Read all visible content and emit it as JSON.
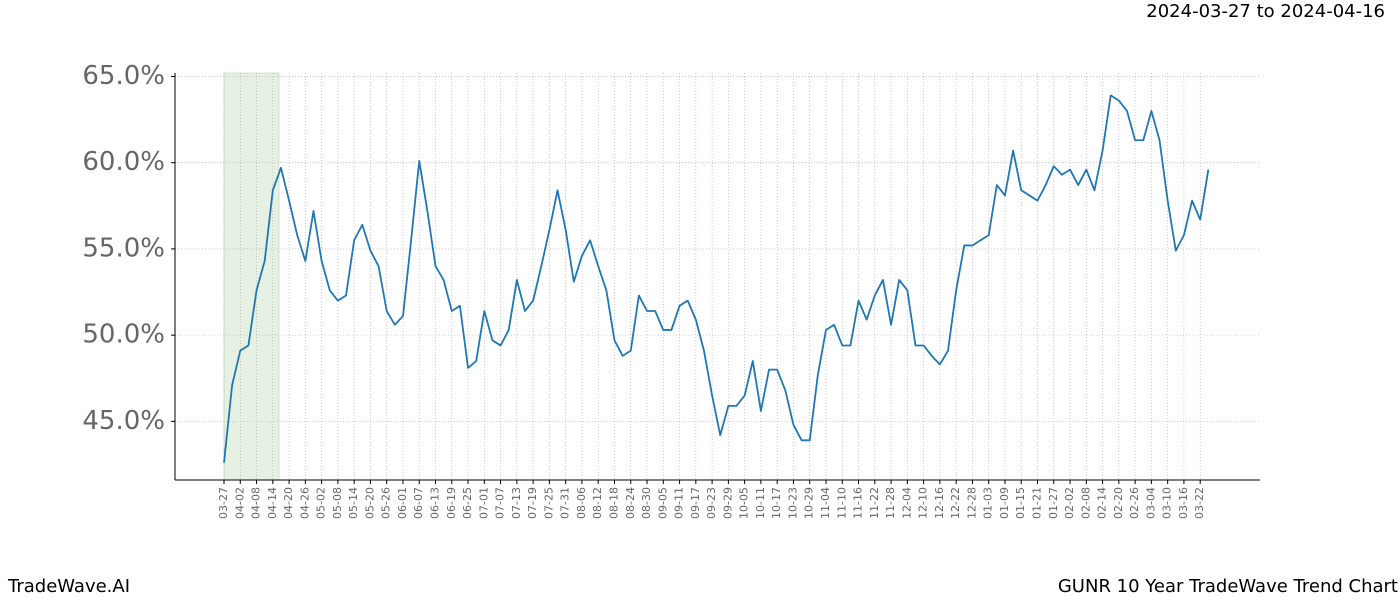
{
  "chart_data": {
    "type": "line",
    "title": "2024-03-27 to 2024-04-16",
    "footer_left": "TradeWave.AI",
    "footer_right": "GUNR 10 Year TradeWave Trend Chart",
    "categories": [
      "03-27",
      null,
      "04-02",
      null,
      "04-08",
      null,
      "04-14",
      null,
      "04-20",
      null,
      "04-26",
      null,
      "05-02",
      null,
      "05-08",
      null,
      "05-14",
      null,
      "05-20",
      null,
      "05-26",
      null,
      "06-01",
      null,
      "06-07",
      null,
      "06-13",
      null,
      "06-19",
      null,
      "06-25",
      null,
      "07-01",
      null,
      "07-07",
      null,
      "07-13",
      null,
      "07-19",
      null,
      "07-25",
      null,
      "07-31",
      null,
      "08-06",
      null,
      "08-12",
      null,
      "08-18",
      null,
      "08-24",
      null,
      "08-30",
      null,
      "09-05",
      null,
      "09-11",
      null,
      "09-17",
      null,
      "09-23",
      null,
      "09-29",
      null,
      "10-05",
      null,
      "10-11",
      null,
      "10-17",
      null,
      "10-23",
      null,
      "10-29",
      null,
      "11-04",
      null,
      "11-10",
      null,
      "11-16",
      null,
      "11-22",
      null,
      "11-28",
      null,
      "12-04",
      null,
      "12-10",
      null,
      "12-16",
      null,
      "12-22",
      null,
      "12-28",
      null,
      "01-03",
      null,
      "01-09",
      null,
      "01-15",
      null,
      "01-21",
      null,
      "01-27",
      null,
      "02-02",
      null,
      "02-08",
      null,
      "02-14",
      null,
      "02-20",
      null,
      "02-26",
      null,
      "03-04",
      null,
      "03-10",
      null,
      "03-16",
      null,
      "03-22",
      null
    ],
    "values": [
      42.6,
      47.1,
      49.1,
      49.4,
      52.6,
      54.3,
      58.4,
      59.7,
      57.8,
      55.8,
      54.3,
      57.2,
      54.3,
      52.6,
      52.0,
      52.3,
      55.5,
      56.4,
      54.9,
      54.0,
      51.4,
      50.6,
      51.1,
      55.5,
      60.1,
      57.2,
      54.0,
      53.2,
      51.4,
      51.7,
      48.1,
      48.5,
      51.4,
      49.7,
      49.4,
      50.3,
      53.2,
      51.4,
      52.0,
      54.0,
      56.1,
      58.4,
      56.1,
      53.1,
      54.6,
      55.5,
      54.0,
      52.6,
      49.7,
      48.8,
      49.1,
      52.3,
      51.4,
      51.4,
      50.3,
      50.3,
      51.7,
      52.0,
      50.9,
      49.1,
      46.5,
      44.2,
      45.9,
      45.9,
      46.5,
      48.5,
      45.6,
      48.0,
      48.0,
      46.8,
      44.8,
      43.9,
      43.9,
      47.7,
      50.3,
      50.6,
      49.4,
      49.4,
      52.0,
      50.9,
      52.3,
      53.2,
      50.6,
      53.2,
      52.6,
      49.4,
      49.4,
      48.8,
      48.3,
      49.1,
      52.6,
      55.2,
      55.2,
      55.5,
      55.8,
      58.7,
      58.1,
      60.7,
      58.4,
      58.1,
      57.8,
      58.7,
      59.8,
      59.3,
      59.6,
      58.7,
      59.6,
      58.4,
      60.7,
      63.9,
      63.6,
      63.0,
      61.3,
      61.3,
      63.0,
      61.3,
      57.8,
      54.9,
      55.8,
      57.8,
      56.7,
      59.6
    ],
    "color": "#1f77b4",
    "ylim": [
      41.6,
      65.2
    ],
    "yticks": [
      {
        "value": 45,
        "label": "45.0%"
      },
      {
        "value": 50,
        "label": "50.0%"
      },
      {
        "value": 55,
        "label": "55.0%"
      },
      {
        "value": 60,
        "label": "60.0%"
      },
      {
        "value": 65,
        "label": "65.0%"
      }
    ],
    "grid": true
  }
}
